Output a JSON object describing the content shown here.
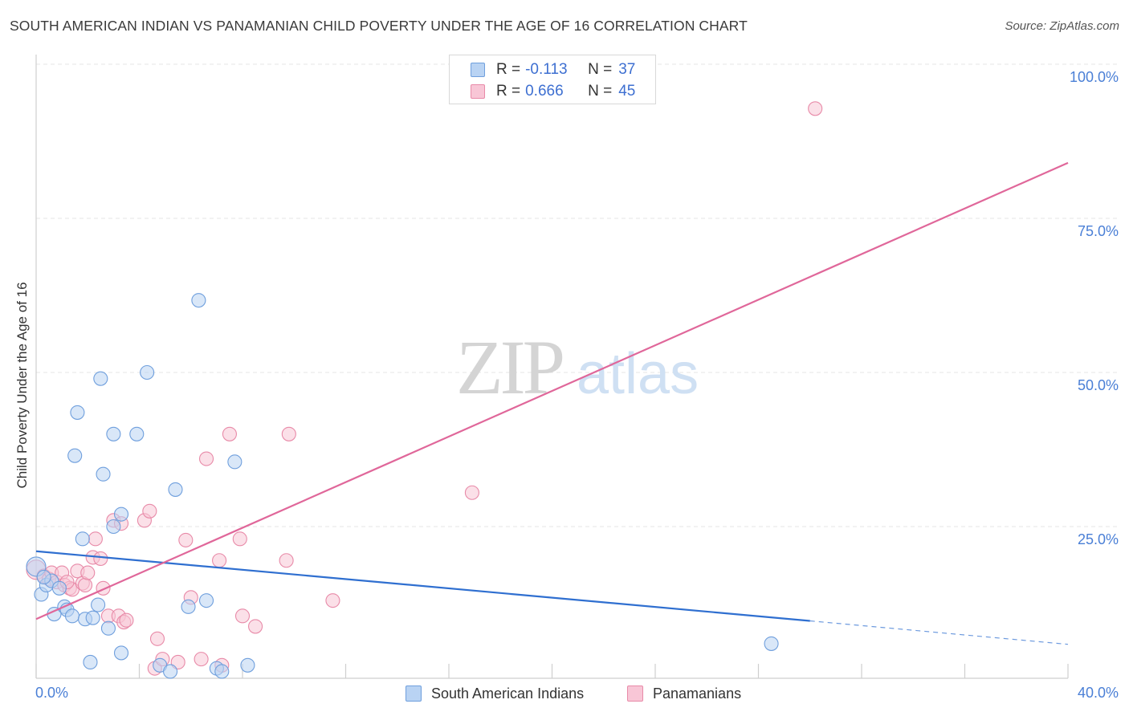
{
  "header": {
    "title": "SOUTH AMERICAN INDIAN VS PANAMANIAN CHILD POVERTY UNDER THE AGE OF 16 CORRELATION CHART",
    "source": "Source: ZipAtlas.com"
  },
  "legend": {
    "r_label": "R =",
    "n_label": "N =",
    "rows": [
      {
        "r": "-0.113",
        "n": "37"
      },
      {
        "r": "0.666",
        "n": "45"
      }
    ]
  },
  "watermark": {
    "zip": "ZIP",
    "atlas": "atlas"
  },
  "chart_data": {
    "type": "scatter",
    "title": "SOUTH AMERICAN INDIAN VS PANAMANIAN CHILD POVERTY UNDER THE AGE OF 16 CORRELATION CHART",
    "xlabel": "",
    "ylabel": "Child Poverty Under the Age of 16",
    "xlim": [
      0,
      40
    ],
    "ylim": [
      0,
      100
    ],
    "x_tick_labels": [
      {
        "value": 0,
        "label": "0.0%"
      },
      {
        "value": 40,
        "label": "40.0%"
      }
    ],
    "y_tick_labels": [
      {
        "value": 25,
        "label": "25.0%"
      },
      {
        "value": 50,
        "label": "50.0%"
      },
      {
        "value": 75,
        "label": "75.0%"
      },
      {
        "value": 100,
        "label": "100.0%"
      }
    ],
    "colors": {
      "blue_fill": "#b9d3f3",
      "blue_stroke": "#6f9fdd",
      "blue_line": "#2f6fd0",
      "pink_fill": "#f8c6d6",
      "pink_stroke": "#e88aa8",
      "pink_line": "#e0679a",
      "tick_text": "#4a7fd6",
      "grid": "#e4e4e4"
    },
    "series": [
      {
        "name": "South American Indians",
        "r": -0.113,
        "n": 37,
        "trend": {
          "x0": 0,
          "y0": 21.0,
          "x1": 30,
          "y1": 9.7,
          "dash_to_x": 40,
          "dash_to_y": 5.9
        },
        "points": [
          [
            0.0,
            18.5
          ],
          [
            0.2,
            14.0
          ],
          [
            0.4,
            15.5
          ],
          [
            0.6,
            16.2
          ],
          [
            0.7,
            10.8
          ],
          [
            0.9,
            15.0
          ],
          [
            1.1,
            12.0
          ],
          [
            1.2,
            11.5
          ],
          [
            1.4,
            10.5
          ],
          [
            1.6,
            43.5
          ],
          [
            1.5,
            36.5
          ],
          [
            1.8,
            23.0
          ],
          [
            1.9,
            10.0
          ],
          [
            2.1,
            3.0
          ],
          [
            2.2,
            10.2
          ],
          [
            2.4,
            12.3
          ],
          [
            2.5,
            49.0
          ],
          [
            2.6,
            33.5
          ],
          [
            2.8,
            8.5
          ],
          [
            3.0,
            40.0
          ],
          [
            3.0,
            25.0
          ],
          [
            3.3,
            4.5
          ],
          [
            3.3,
            27.0
          ],
          [
            3.9,
            40.0
          ],
          [
            4.3,
            50.0
          ],
          [
            4.8,
            2.5
          ],
          [
            5.2,
            1.5
          ],
          [
            5.4,
            31.0
          ],
          [
            5.9,
            12.0
          ],
          [
            6.3,
            61.7
          ],
          [
            6.6,
            13.0
          ],
          [
            7.0,
            2.0
          ],
          [
            7.2,
            1.5
          ],
          [
            7.7,
            35.5
          ],
          [
            8.2,
            2.5
          ],
          [
            28.5,
            6.0
          ],
          [
            0.3,
            16.8
          ]
        ]
      },
      {
        "name": "Panamanians",
        "r": 0.666,
        "n": 45,
        "trend": {
          "x0": 0,
          "y0": 10.0,
          "x1": 40,
          "y1": 84.0
        },
        "points": [
          [
            0.0,
            18.0
          ],
          [
            0.3,
            17.0
          ],
          [
            0.5,
            16.5
          ],
          [
            0.6,
            17.5
          ],
          [
            0.8,
            16.0
          ],
          [
            1.0,
            17.5
          ],
          [
            1.1,
            15.5
          ],
          [
            1.3,
            15.0
          ],
          [
            1.4,
            14.8
          ],
          [
            1.6,
            17.8
          ],
          [
            1.8,
            15.8
          ],
          [
            1.9,
            15.5
          ],
          [
            2.0,
            17.5
          ],
          [
            2.2,
            20.0
          ],
          [
            2.3,
            23.0
          ],
          [
            2.5,
            19.8
          ],
          [
            2.6,
            15.0
          ],
          [
            2.8,
            10.5
          ],
          [
            3.0,
            26.0
          ],
          [
            3.2,
            10.5
          ],
          [
            3.3,
            25.5
          ],
          [
            3.4,
            9.5
          ],
          [
            3.5,
            9.8
          ],
          [
            4.2,
            26.0
          ],
          [
            4.4,
            27.5
          ],
          [
            4.6,
            2.0
          ],
          [
            4.7,
            6.8
          ],
          [
            4.9,
            3.5
          ],
          [
            5.5,
            3.0
          ],
          [
            5.8,
            22.8
          ],
          [
            6.0,
            13.5
          ],
          [
            6.4,
            3.5
          ],
          [
            6.6,
            36.0
          ],
          [
            7.1,
            19.5
          ],
          [
            7.2,
            2.5
          ],
          [
            7.5,
            40.0
          ],
          [
            7.9,
            23.0
          ],
          [
            8.0,
            10.5
          ],
          [
            8.5,
            8.8
          ],
          [
            9.7,
            19.5
          ],
          [
            9.8,
            40.0
          ],
          [
            11.5,
            13.0
          ],
          [
            16.9,
            30.5
          ],
          [
            30.2,
            92.8
          ],
          [
            1.2,
            16.0
          ]
        ]
      }
    ]
  }
}
